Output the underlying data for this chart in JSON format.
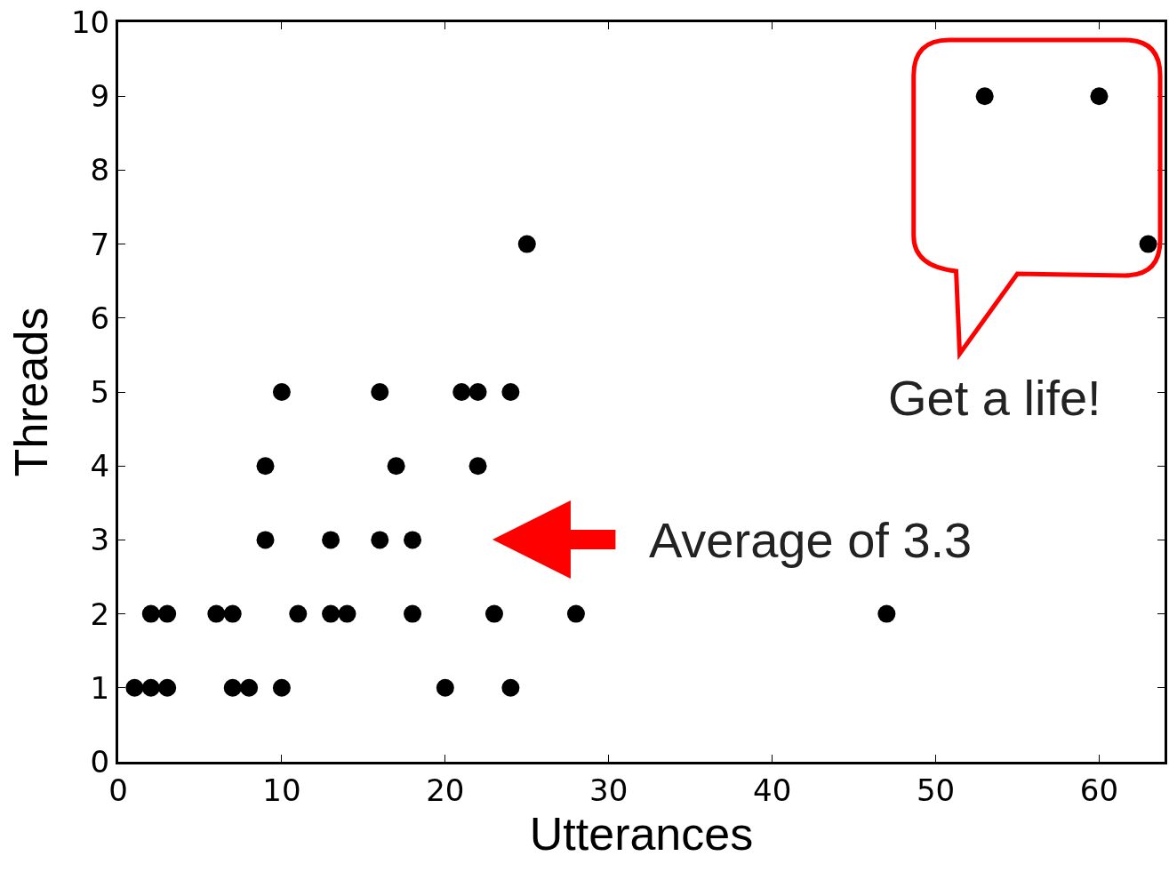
{
  "chart_data": {
    "type": "scatter",
    "xlabel": "Utterances",
    "ylabel": "Threads",
    "x": [
      1,
      2,
      3,
      7,
      8,
      10,
      20,
      24,
      2,
      3,
      6,
      7,
      11,
      13,
      14,
      18,
      23,
      28,
      47,
      9,
      13,
      16,
      18,
      9,
      17,
      22,
      10,
      16,
      21,
      22,
      24,
      25,
      63,
      53,
      60
    ],
    "values": [
      1,
      1,
      1,
      1,
      1,
      1,
      1,
      1,
      2,
      2,
      2,
      2,
      2,
      2,
      2,
      2,
      2,
      2,
      2,
      3,
      3,
      3,
      3,
      4,
      4,
      4,
      5,
      5,
      5,
      5,
      5,
      7,
      7,
      9,
      9
    ],
    "color": "#000000",
    "marker": "circle",
    "xlim": [
      0,
      64
    ],
    "xticks": [
      0,
      10,
      20,
      30,
      40,
      50,
      60
    ],
    "ylim": [
      0,
      10
    ],
    "yticks": [
      0,
      1,
      2,
      3,
      4,
      5,
      6,
      7,
      8,
      9,
      10
    ],
    "legend": false,
    "annotations": [
      "Average of 3.3",
      "Get a life!"
    ]
  }
}
